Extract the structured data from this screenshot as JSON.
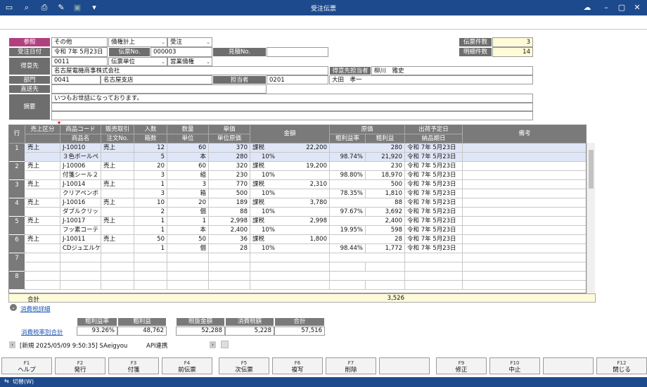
{
  "window": {
    "title": "受注伝票"
  },
  "header": {
    "sanshou_label": "参照",
    "sanshou_value": "その他",
    "kind1": "債権計上",
    "kind2": "受注",
    "order_date_label": "受注日付",
    "order_date": "令和  7年  5月23日",
    "denpyo_no_label": "伝票No.",
    "denpyo_no": "000003",
    "mitsumori_label": "見積No.",
    "mitsumori_value": "",
    "tokuisaki_label": "得意先",
    "tokuisaki_code": "0011",
    "unit_select": "伝票単位",
    "credit_select": "営業債権",
    "tokuisaki_name": "名古屋電機商事株式会社",
    "tanto_label": "得意先担当者",
    "tanto_name": "柳川　雅史",
    "bumon_label": "部門",
    "bumon_code": "0041",
    "bumon_name": "名古屋支店",
    "tantosha_label": "担当者",
    "tantosha_code": "0201",
    "tantosha_name": "大田　孝一",
    "chokuso_label": "直送先",
    "tekiyo_label": "摘要",
    "tekiyo_text": "いつもお世話になっております。",
    "denpyo_count_label": "伝票件数",
    "denpyo_count": "3",
    "meisai_count_label": "明細件数",
    "meisai_count": "14"
  },
  "grid": {
    "headers": {
      "row": "行",
      "sales": "売上区分",
      "product_code": "商品コード",
      "product_name": "商品名",
      "sales_type": "販売取引",
      "order_no": "注文No.",
      "irisu": "入数",
      "hakosu": "箱数",
      "qty": "数量",
      "unit": "単位",
      "tanka": "単価",
      "tanka_genka": "単位原価",
      "kingaku": "金額",
      "genka": "原価",
      "arari_rate": "粗利益率",
      "arari": "粗利益",
      "shukka": "出荷予定日",
      "nohin": "納品期日",
      "biko": "備考"
    },
    "rows": [
      {
        "no": "1",
        "sales": "売上",
        "code": "J-10010",
        "name": "３色ボールペ",
        "stype": "売上",
        "orderno": "",
        "irisu": "12",
        "hakosu": "5",
        "qty": "60",
        "unit": "本",
        "tanka": "370",
        "ugenka": "280",
        "tax": "課税",
        "taxrate": "10%",
        "amount": "22,200",
        "genka": "280",
        "rate": "98.74%",
        "arari": "21,920",
        "ship": "令和  7年  5月23日",
        "deliver": "令和  7年  5月23日"
      },
      {
        "no": "2",
        "sales": "売上",
        "code": "J-10006",
        "name": "付箋シール２",
        "stype": "売上",
        "orderno": "",
        "irisu": "20",
        "hakosu": "3",
        "qty": "60",
        "unit": "組",
        "tanka": "320",
        "ugenka": "230",
        "tax": "課税",
        "taxrate": "10%",
        "amount": "19,200",
        "genka": "230",
        "rate": "98.80%",
        "arari": "18,970",
        "ship": "令和  7年  5月23日",
        "deliver": "令和  7年  5月23日"
      },
      {
        "no": "3",
        "sales": "売上",
        "code": "J-10014",
        "name": "クリアペンボ",
        "stype": "売上",
        "orderno": "",
        "irisu": "1",
        "hakosu": "3",
        "qty": "3",
        "unit": "箱",
        "tanka": "770",
        "ugenka": "500",
        "tax": "課税",
        "taxrate": "10%",
        "amount": "2,310",
        "genka": "500",
        "rate": "78.35%",
        "arari": "1,810",
        "ship": "令和  7年  5月23日",
        "deliver": "令和  7年  5月23日"
      },
      {
        "no": "4",
        "sales": "売上",
        "code": "J-10016",
        "name": "ダブルクリッ",
        "stype": "売上",
        "orderno": "",
        "irisu": "10",
        "hakosu": "2",
        "qty": "20",
        "unit": "個",
        "tanka": "189",
        "ugenka": "88",
        "tax": "課税",
        "taxrate": "10%",
        "amount": "3,780",
        "genka": "88",
        "rate": "97.67%",
        "arari": "3,692",
        "ship": "令和  7年  5月23日",
        "deliver": "令和  7年  5月23日"
      },
      {
        "no": "5",
        "sales": "売上",
        "code": "J-10017",
        "name": "フッ素コーテ",
        "stype": "売上",
        "orderno": "",
        "irisu": "1",
        "hakosu": "1",
        "qty": "1",
        "unit": "本",
        "tanka": "2,998",
        "ugenka": "2,400",
        "tax": "課税",
        "taxrate": "10%",
        "amount": "2,998",
        "genka": "2,400",
        "rate": "19.95%",
        "arari": "598",
        "ship": "令和  7年  5月23日",
        "deliver": "令和  7年  5月23日"
      },
      {
        "no": "6",
        "sales": "売上",
        "code": "J-10011",
        "name": "CDジュエルケ",
        "stype": "売上",
        "orderno": "",
        "irisu": "50",
        "hakosu": "1",
        "qty": "50",
        "unit": "個",
        "tanka": "36",
        "ugenka": "28",
        "tax": "課税",
        "taxrate": "10%",
        "amount": "1,800",
        "genka": "28",
        "rate": "98.44%",
        "arari": "1,772",
        "ship": "令和  7年  5月23日",
        "deliver": "令和  7年  5月23日"
      },
      {
        "no": "7"
      },
      {
        "no": "8"
      }
    ],
    "total_label": "合計",
    "total_genka": "3,526"
  },
  "tax_detail_link": "消費税詳細",
  "summary": {
    "link": "消費税率別合計",
    "h_rate": "粗利益率",
    "h_arari": "粗利益",
    "h_zeinuki": "税抜金額",
    "h_tax": "消費税額",
    "h_total": "合計",
    "rate": "93.26%",
    "arari": "48,762",
    "zeinuki": "52,288",
    "tax": "5,228",
    "total": "57,516"
  },
  "status": {
    "text": "[新規  2025/05/09   9:50:35]  SAeigyou",
    "api": "API連携"
  },
  "fkeys": [
    {
      "key": "F1",
      "label": "ヘルプ"
    },
    {
      "key": "F2",
      "label": "発行"
    },
    {
      "key": "F3",
      "label": "付箋"
    },
    {
      "key": "F4",
      "label": "前伝票"
    },
    {
      "key": "F5",
      "label": "次伝票"
    },
    {
      "key": "F6",
      "label": "複写"
    },
    {
      "key": "F7",
      "label": "削除"
    },
    {
      "key": "",
      "label": ""
    },
    {
      "key": "F9",
      "label": "修正"
    },
    {
      "key": "F10",
      "label": "中止"
    },
    {
      "key": "",
      "label": ""
    },
    {
      "key": "F12",
      "label": "閉じる"
    }
  ],
  "bottom": {
    "switch": "切替(W)"
  }
}
